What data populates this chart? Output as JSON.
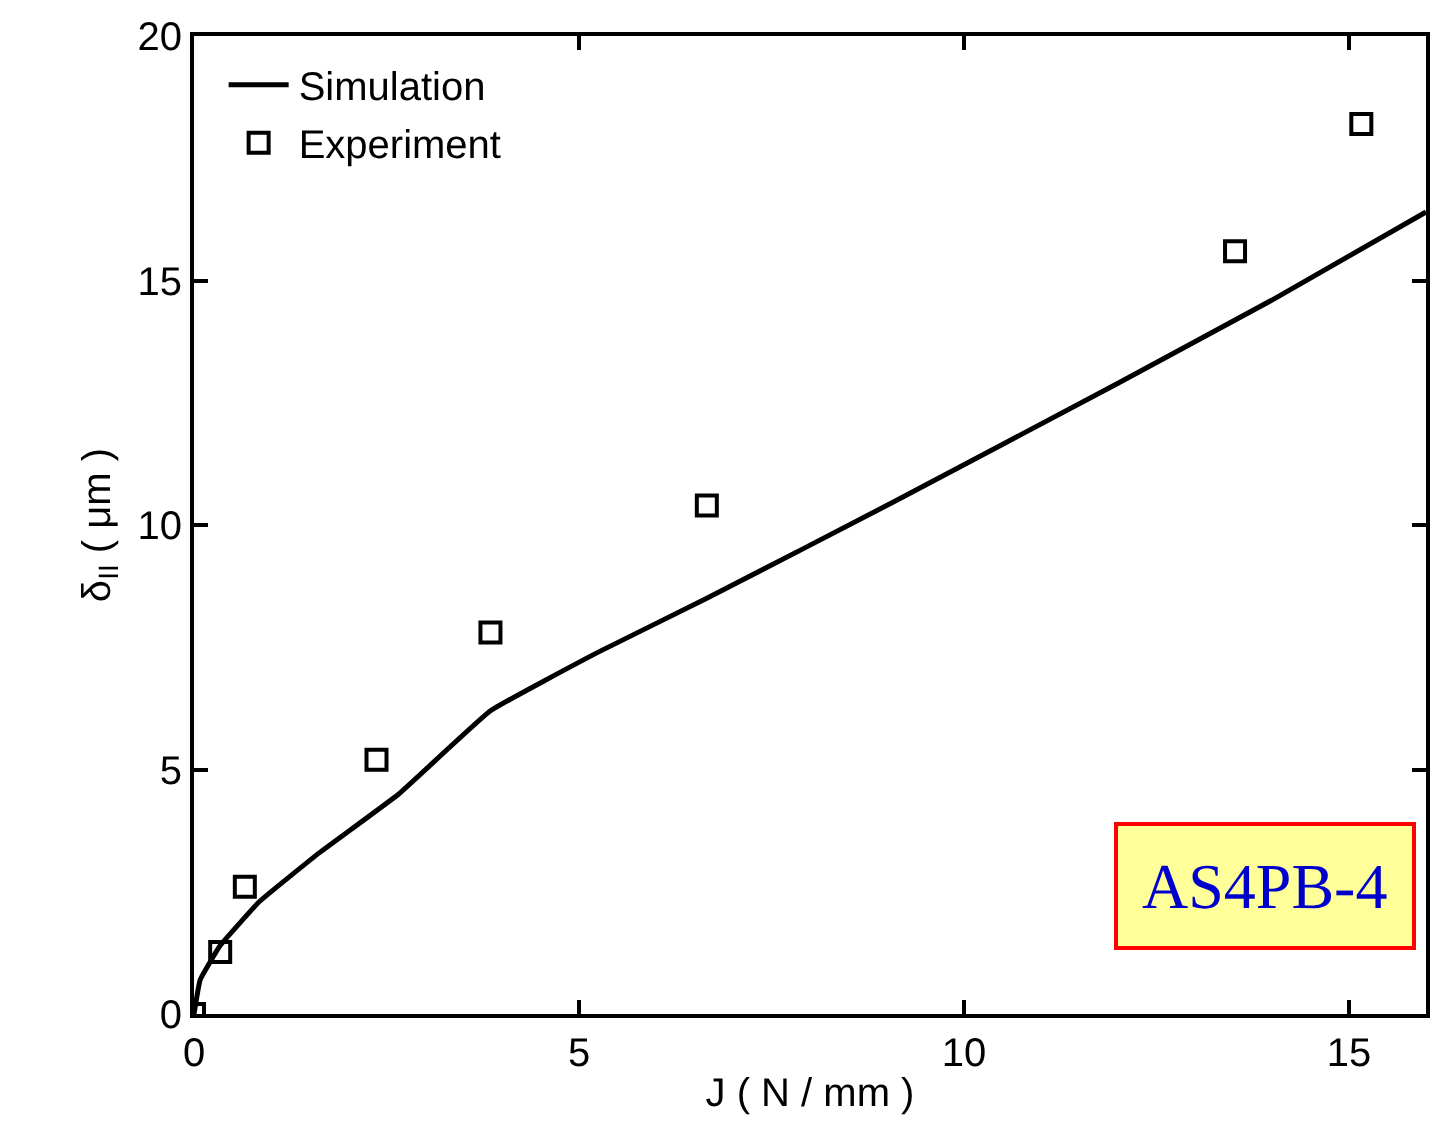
{
  "chart_data": {
    "type": "line",
    "xlabel": "J ( N / mm )",
    "ylabel": "δ$_{II}$ ( μm )",
    "xlim": [
      0,
      16
    ],
    "xticks": [
      0,
      5,
      10,
      15
    ],
    "ylim": [
      0,
      20
    ],
    "yticks": [
      0,
      5,
      10,
      15,
      20
    ],
    "grid": false,
    "legend": "top left",
    "series": [
      {
        "name": "Simulation",
        "color": "#000000",
        "line_style": "solid",
        "marker": "none",
        "x": [
          0,
          0.08,
          0.34,
          0.85,
          1.63,
          2.66,
          3.85,
          5.25,
          6.66,
          9.12,
          12,
          14,
          16
        ],
        "values": [
          0,
          0.7,
          1.4,
          2.3,
          3.3,
          4.5,
          6.2,
          7.4,
          8.5,
          10.5,
          12.9,
          14.6,
          16.4
        ]
      },
      {
        "name": "Experiment",
        "type": "scatter",
        "color": "#000000",
        "marker": "square",
        "x": [
          0,
          0.34,
          0.66,
          2.37,
          3.85,
          6.66,
          13.52,
          15.16
        ],
        "values": [
          0,
          1.27,
          2.6,
          5.2,
          7.8,
          10.4,
          15.6,
          18.2
        ]
      }
    ],
    "annotations": [
      "AS4PB-4"
    ]
  }
}
